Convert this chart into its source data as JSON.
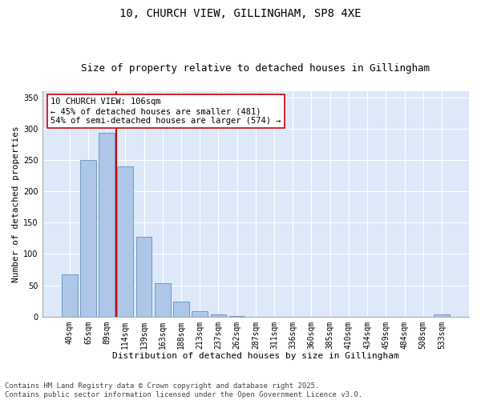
{
  "title1": "10, CHURCH VIEW, GILLINGHAM, SP8 4XE",
  "title2": "Size of property relative to detached houses in Gillingham",
  "xlabel": "Distribution of detached houses by size in Gillingham",
  "ylabel": "Number of detached properties",
  "categories": [
    "40sqm",
    "65sqm",
    "89sqm",
    "114sqm",
    "139sqm",
    "163sqm",
    "188sqm",
    "213sqm",
    "237sqm",
    "262sqm",
    "287sqm",
    "311sqm",
    "336sqm",
    "360sqm",
    "385sqm",
    "410sqm",
    "434sqm",
    "459sqm",
    "484sqm",
    "508sqm",
    "533sqm"
  ],
  "values": [
    68,
    250,
    293,
    240,
    127,
    53,
    24,
    9,
    4,
    1,
    0,
    0,
    0,
    0,
    0,
    0,
    0,
    0,
    0,
    0,
    3
  ],
  "bar_color": "#aec6e8",
  "bar_edge_color": "#6090c0",
  "vline_color": "#cc0000",
  "vline_x": 2.5,
  "annotation_text": "10 CHURCH VIEW: 106sqm\n← 45% of detached houses are smaller (481)\n54% of semi-detached houses are larger (574) →",
  "annotation_box_color": "white",
  "annotation_box_edge": "#cc0000",
  "ylim": [
    0,
    360
  ],
  "yticks": [
    0,
    50,
    100,
    150,
    200,
    250,
    300,
    350
  ],
  "background_color": "#dde8f8",
  "footer": "Contains HM Land Registry data © Crown copyright and database right 2025.\nContains public sector information licensed under the Open Government Licence v3.0.",
  "title1_fontsize": 10,
  "title2_fontsize": 9,
  "xlabel_fontsize": 8,
  "ylabel_fontsize": 8,
  "tick_fontsize": 7,
  "annotation_fontsize": 7.5,
  "footer_fontsize": 6.5
}
